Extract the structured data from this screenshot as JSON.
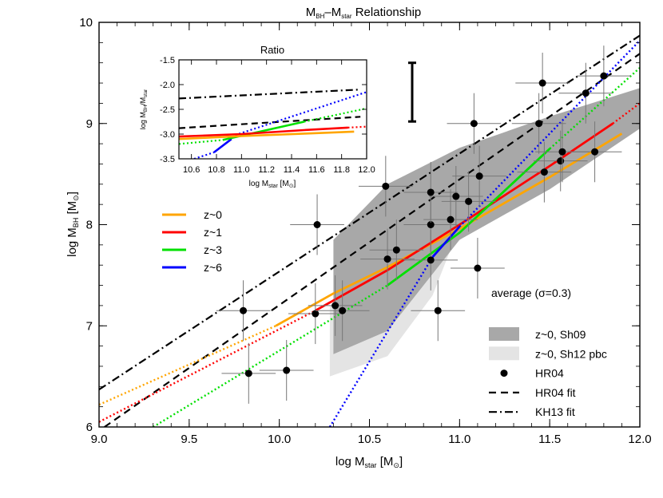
{
  "chart_data": {
    "type": "line",
    "title": "M_BH–M_star Relationship",
    "xlabel": "log M_star [M⊙]",
    "ylabel": "log M_BH [M⊙]",
    "xlim": [
      9.0,
      12.0
    ],
    "ylim": [
      6.0,
      10.0
    ],
    "xticks": [
      "9.0",
      "9.5",
      "10.0",
      "10.5",
      "11.0",
      "11.5",
      "12.0"
    ],
    "yticks": [
      "6",
      "7",
      "8",
      "9",
      "10"
    ],
    "colors": {
      "z0": "#ffa500",
      "z1": "#ff0000",
      "z3": "#00e000",
      "z6": "#0000ff",
      "sh09": "#a8a8a8",
      "sh12": "#e4e4e4"
    },
    "series": [
      {
        "name": "z~0",
        "color": "#ffa500",
        "solid": [
          [
            9.98,
            7.0
          ],
          [
            10.3,
            7.32
          ],
          [
            10.6,
            7.58
          ],
          [
            11.0,
            7.96
          ],
          [
            11.5,
            8.47
          ],
          [
            11.9,
            8.9
          ]
        ],
        "dotted": [
          [
            9.0,
            6.22
          ],
          [
            9.98,
            7.0
          ]
        ]
      },
      {
        "name": "z~1",
        "color": "#ff0000",
        "solid": [
          [
            10.2,
            7.15
          ],
          [
            10.6,
            7.55
          ],
          [
            11.0,
            8.0
          ],
          [
            11.5,
            8.58
          ],
          [
            11.85,
            9.0
          ]
        ],
        "dotted": [
          [
            9.0,
            6.05
          ],
          [
            10.2,
            7.15
          ]
        ],
        "dotted_end": [
          [
            11.85,
            9.0
          ],
          [
            12.0,
            9.2
          ]
        ]
      },
      {
        "name": "z~3",
        "color": "#00e000",
        "solid": [
          [
            10.6,
            7.4
          ],
          [
            11.0,
            7.92
          ],
          [
            11.5,
            8.75
          ]
        ],
        "dotted": [
          [
            9.3,
            6.0
          ],
          [
            10.6,
            7.4
          ]
        ],
        "dotted_end": [
          [
            11.5,
            8.75
          ],
          [
            12.0,
            9.55
          ]
        ]
      },
      {
        "name": "z~6",
        "color": "#0000ff",
        "solid": [
          [
            10.85,
            7.68
          ],
          [
            11.0,
            7.98
          ]
        ],
        "dotted": [
          [
            10.28,
            6.0
          ],
          [
            10.85,
            7.68
          ]
        ],
        "dotted_end": [
          [
            11.0,
            7.98
          ],
          [
            12.0,
            9.82
          ]
        ]
      }
    ],
    "fits": [
      {
        "name": "HR04 fit",
        "style": "dashed",
        "points": [
          [
            9.03,
            6.0
          ],
          [
            12.0,
            9.69
          ]
        ]
      },
      {
        "name": "KH13 fit",
        "style": "dashdot",
        "points": [
          [
            9.0,
            6.37
          ],
          [
            12.0,
            9.87
          ]
        ]
      }
    ],
    "bands": [
      {
        "name": "z~0, Sh09",
        "color": "#a8a8a8",
        "upper": [
          [
            10.3,
            7.85
          ],
          [
            10.6,
            8.4
          ],
          [
            11.0,
            8.76
          ],
          [
            11.5,
            9.07
          ],
          [
            12.0,
            9.35
          ]
        ],
        "lower": [
          [
            10.3,
            6.72
          ],
          [
            10.6,
            6.95
          ],
          [
            11.0,
            7.85
          ],
          [
            11.5,
            8.35
          ],
          [
            12.0,
            8.95
          ]
        ]
      },
      {
        "name": "z~0, Sh12 pbc",
        "color": "#e4e4e4",
        "upper": [
          [
            10.28,
            7.2
          ],
          [
            10.55,
            7.35
          ],
          [
            10.85,
            7.68
          ],
          [
            11.0,
            7.98
          ]
        ],
        "lower": [
          [
            10.28,
            6.5
          ],
          [
            10.6,
            6.7
          ],
          [
            10.85,
            7.3
          ],
          [
            11.0,
            7.98
          ]
        ]
      }
    ],
    "points_label": "HR04",
    "points": [
      [
        9.8,
        7.15
      ],
      [
        9.83,
        6.53
      ],
      [
        10.04,
        6.56
      ],
      [
        10.2,
        7.12
      ],
      [
        10.21,
        8.0
      ],
      [
        10.31,
        7.2
      ],
      [
        10.35,
        7.15
      ],
      [
        10.59,
        8.38
      ],
      [
        10.6,
        7.66
      ],
      [
        10.65,
        7.75
      ],
      [
        10.84,
        7.65
      ],
      [
        10.84,
        8.0
      ],
      [
        10.84,
        8.32
      ],
      [
        10.88,
        7.15
      ],
      [
        10.95,
        8.05
      ],
      [
        10.98,
        8.28
      ],
      [
        11.05,
        8.23
      ],
      [
        11.1,
        7.57
      ],
      [
        11.11,
        8.48
      ],
      [
        11.08,
        9.0
      ],
      [
        11.44,
        9.0
      ],
      [
        11.46,
        9.4
      ],
      [
        11.47,
        8.52
      ],
      [
        11.56,
        8.63
      ],
      [
        11.57,
        8.72
      ],
      [
        11.7,
        9.3
      ],
      [
        11.75,
        8.72
      ],
      [
        11.8,
        9.47
      ]
    ],
    "average_label": "average (σ=0.3)",
    "average_bar": [
      9.02,
      9.6
    ],
    "legend_left": [
      "z~0",
      "z~1",
      "z~3",
      "z~6"
    ],
    "legend_right": [
      "z~0, Sh09",
      "z~0, Sh12 pbc",
      "HR04",
      "HR04 fit",
      "KH13 fit"
    ],
    "inset": {
      "title": "Ratio",
      "xlabel": "log M_star [M⊙]",
      "ylabel": "log M_BH/M_star",
      "xlim": [
        10.5,
        12.0
      ],
      "ylim": [
        -3.5,
        -1.5
      ],
      "xticks": [
        "10.6",
        "10.8",
        "11.0",
        "11.2",
        "11.4",
        "11.6",
        "11.8",
        "12.0"
      ],
      "yticks": [
        "-1.5",
        "-2.0",
        "-2.5",
        "-3.0",
        "-3.5"
      ],
      "curves": [
        {
          "name": "KH13 fit",
          "style": "dashdot",
          "color": "#000000",
          "points": [
            [
              10.5,
              -2.28
            ],
            [
              11.95,
              -2.1
            ]
          ]
        },
        {
          "name": "HR04 fit",
          "style": "dashed",
          "color": "#000000",
          "points": [
            [
              10.5,
              -2.88
            ],
            [
              11.95,
              -2.65
            ]
          ]
        },
        {
          "name": "z~6",
          "color": "#0000ff",
          "solid": [
            [
              10.78,
              -3.37
            ],
            [
              10.92,
              -3.1
            ]
          ],
          "dotted": [
            [
              10.5,
              -3.6
            ],
            [
              10.78,
              -3.37
            ]
          ],
          "dotted_end": [
            [
              10.95,
              -3.02
            ],
            [
              12.0,
              -2.15
            ]
          ]
        },
        {
          "name": "z~3",
          "color": "#00e000",
          "solid": [
            [
              10.85,
              -3.12
            ],
            [
              11.5,
              -2.75
            ]
          ],
          "dotted": [
            [
              10.5,
              -3.2
            ],
            [
              10.85,
              -3.12
            ]
          ],
          "dotted_end": [
            [
              11.5,
              -2.75
            ],
            [
              12.0,
              -2.48
            ]
          ]
        },
        {
          "name": "z~1",
          "color": "#ff0000",
          "solid": [
            [
              10.5,
              -3.05
            ],
            [
              11.0,
              -3.0
            ],
            [
              11.5,
              -2.92
            ],
            [
              11.85,
              -2.87
            ]
          ],
          "dotted_end": [
            [
              11.85,
              -2.87
            ],
            [
              12.0,
              -2.85
            ]
          ]
        },
        {
          "name": "z~0",
          "color": "#ffa500",
          "solid": [
            [
              10.5,
              -3.1
            ],
            [
              11.0,
              -3.04
            ],
            [
              11.5,
              -2.99
            ],
            [
              11.9,
              -2.95
            ]
          ]
        }
      ]
    }
  }
}
